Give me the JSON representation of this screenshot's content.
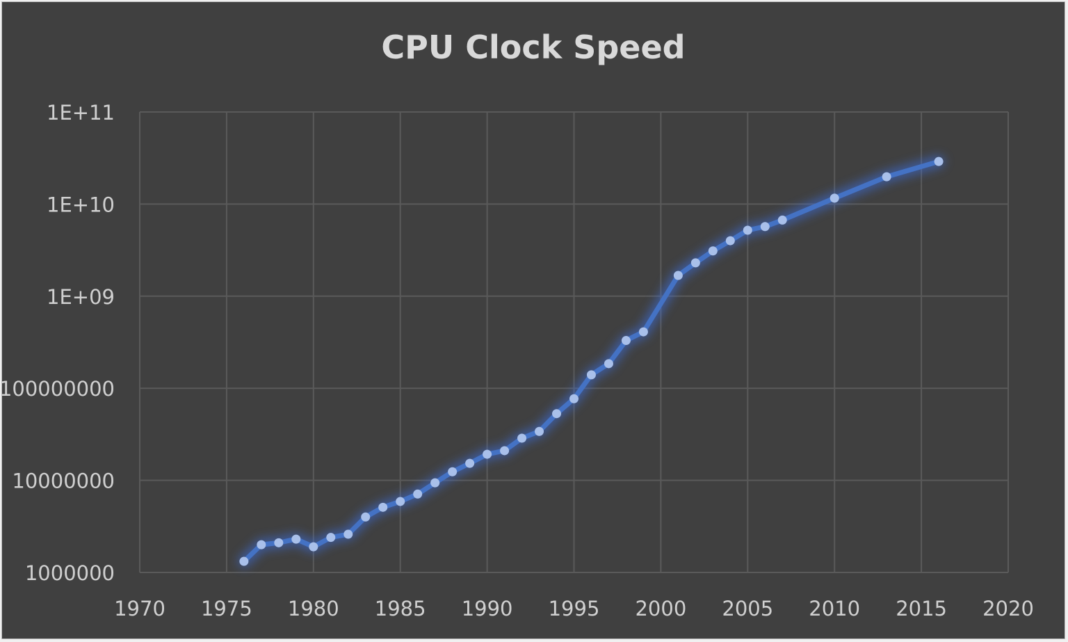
{
  "chart_data": {
    "type": "line",
    "title": "CPU Clock Speed",
    "xlabel": "",
    "ylabel": "",
    "yscale": "log",
    "xlim": [
      1970,
      2020
    ],
    "ylim": [
      1000000,
      100000000000
    ],
    "x_ticks": [
      "1970",
      "1975",
      "1980",
      "1985",
      "1990",
      "1995",
      "2000",
      "2005",
      "2010",
      "2015",
      "2020"
    ],
    "y_ticks": [
      "1000000",
      "10000000",
      "100000000",
      "1E+09",
      "1E+10",
      "1E+11"
    ],
    "grid": true,
    "legend": null,
    "series": [
      {
        "name": "Clock Speed",
        "color": "#4472c4",
        "marker_color": "#a9c0ea",
        "x": [
          1976,
          1977,
          1978,
          1979,
          1980,
          1981,
          1982,
          1983,
          1984,
          1985,
          1986,
          1987,
          1988,
          1989,
          1990,
          1991,
          1992,
          1993,
          1994,
          1995,
          1996,
          1997,
          1998,
          1999,
          2001,
          2002,
          2003,
          2004,
          2005,
          2006,
          2007,
          2010,
          2013,
          2016
        ],
        "values": [
          1320000,
          2000000,
          2100000,
          2300000,
          1900000,
          2400000,
          2600000,
          4000000,
          5100000,
          5900000,
          7100000,
          9400000,
          12400000,
          15300000,
          19200000,
          21000000,
          28700000,
          34000000,
          53000000,
          77000000,
          140000000,
          185000000,
          330000000,
          410000000,
          1680000000,
          2300000000,
          3100000000,
          4000000000,
          5200000000,
          5700000000,
          6700000000,
          11600000000,
          19800000000,
          29000000000
        ]
      }
    ]
  },
  "colors": {
    "background": "#404040",
    "grid": "#5a5a5a",
    "text": "#d0d0d0",
    "line": "#4472c4",
    "marker": "#a9c0ea"
  }
}
